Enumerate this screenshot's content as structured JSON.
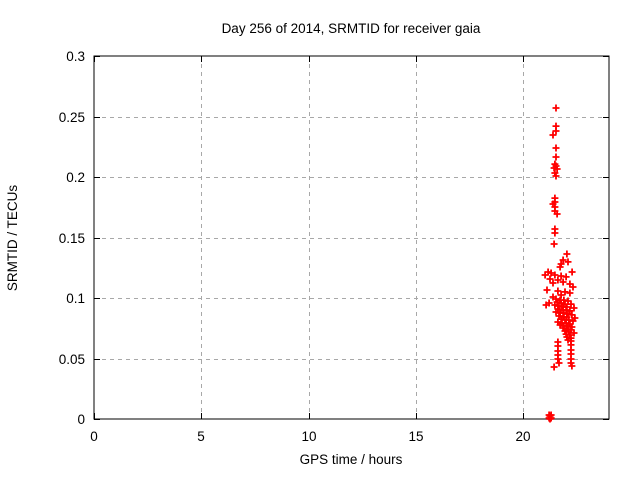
{
  "chart_data": {
    "type": "scatter",
    "title": "Day 256 of 2014, SRMTID for receiver gaia",
    "xlabel": "GPS time / hours",
    "ylabel": "SRMTID / TECUs",
    "xlim": [
      0,
      24
    ],
    "ylim": [
      0,
      0.3
    ],
    "xticks": {
      "values": [
        0,
        5,
        10,
        15,
        20
      ],
      "labels": [
        "0",
        "5",
        "10",
        "15",
        "20"
      ]
    },
    "yticks": {
      "values": [
        0,
        0.05,
        0.1,
        0.15,
        0.2,
        0.25,
        0.3
      ],
      "labels": [
        "0",
        "0.05",
        "0.1",
        "0.15",
        "0.2",
        "0.25",
        "0.3"
      ]
    },
    "grid": true,
    "grid_color": "#a8a8a8",
    "marker_shape": "plus",
    "marker_color": "#ff0000",
    "series": [
      {
        "name": "SRMTID",
        "points": [
          [
            21.53,
            0.257
          ],
          [
            21.53,
            0.2421
          ],
          [
            21.53,
            0.238
          ],
          [
            21.39,
            0.2347
          ],
          [
            21.53,
            0.224
          ],
          [
            21.53,
            0.2165
          ],
          [
            21.48,
            0.2107
          ],
          [
            21.53,
            0.2091
          ],
          [
            21.44,
            0.2074
          ],
          [
            21.58,
            0.2066
          ],
          [
            21.48,
            0.2033
          ],
          [
            21.53,
            0.2008
          ],
          [
            21.48,
            0.1826
          ],
          [
            21.48,
            0.1793
          ],
          [
            21.39,
            0.1777
          ],
          [
            21.48,
            0.1752
          ],
          [
            21.48,
            0.1719
          ],
          [
            21.58,
            0.1694
          ],
          [
            21.48,
            0.157
          ],
          [
            21.48,
            0.1537
          ],
          [
            21.44,
            0.1446
          ],
          [
            22.04,
            0.1364
          ],
          [
            21.86,
            0.1314
          ],
          [
            22.09,
            0.1298
          ],
          [
            21.77,
            0.1281
          ],
          [
            21.72,
            0.1256
          ],
          [
            21.16,
            0.1215
          ],
          [
            22.28,
            0.1215
          ],
          [
            21.3,
            0.1207
          ],
          [
            21.02,
            0.119
          ],
          [
            21.48,
            0.119
          ],
          [
            21.77,
            0.1182
          ],
          [
            22.0,
            0.1174
          ],
          [
            21.25,
            0.1157
          ],
          [
            21.62,
            0.1149
          ],
          [
            21.86,
            0.1132
          ],
          [
            21.39,
            0.1124
          ],
          [
            22.18,
            0.1116
          ],
          [
            22.32,
            0.1091
          ],
          [
            21.11,
            0.1066
          ],
          [
            21.62,
            0.1058
          ],
          [
            21.95,
            0.105
          ],
          [
            22.18,
            0.1041
          ],
          [
            21.77,
            0.1025
          ],
          [
            21.39,
            0.1008
          ],
          [
            21.21,
            0.0959
          ],
          [
            21.07,
            0.0942
          ],
          [
            21.53,
            0.0992
          ],
          [
            21.72,
            0.0983
          ],
          [
            21.9,
            0.0983
          ],
          [
            22.09,
            0.0975
          ],
          [
            21.58,
            0.0967
          ],
          [
            21.77,
            0.0959
          ],
          [
            21.95,
            0.095
          ],
          [
            22.23,
            0.095
          ],
          [
            21.48,
            0.0942
          ],
          [
            21.67,
            0.0934
          ],
          [
            21.86,
            0.0926
          ],
          [
            22.04,
            0.0926
          ],
          [
            22.37,
            0.0917
          ],
          [
            21.62,
            0.0909
          ],
          [
            21.81,
            0.0901
          ],
          [
            22.0,
            0.0901
          ],
          [
            22.18,
            0.0893
          ],
          [
            21.53,
            0.0884
          ],
          [
            21.72,
            0.0876
          ],
          [
            21.9,
            0.0876
          ],
          [
            22.09,
            0.0868
          ],
          [
            22.27,
            0.086
          ],
          [
            21.67,
            0.0851
          ],
          [
            21.86,
            0.0843
          ],
          [
            22.04,
            0.0843
          ],
          [
            22.41,
            0.0835
          ],
          [
            21.77,
            0.0826
          ],
          [
            21.95,
            0.0818
          ],
          [
            22.13,
            0.0818
          ],
          [
            22.32,
            0.081
          ],
          [
            21.62,
            0.0802
          ],
          [
            21.81,
            0.0793
          ],
          [
            22.0,
            0.0793
          ],
          [
            22.18,
            0.0785
          ],
          [
            21.72,
            0.0777
          ],
          [
            21.9,
            0.0769
          ],
          [
            22.09,
            0.0769
          ],
          [
            22.27,
            0.076
          ],
          [
            21.86,
            0.0752
          ],
          [
            22.04,
            0.0744
          ],
          [
            22.23,
            0.0736
          ],
          [
            21.95,
            0.0727
          ],
          [
            22.13,
            0.0719
          ],
          [
            22.37,
            0.0711
          ],
          [
            22.0,
            0.0702
          ],
          [
            22.18,
            0.0694
          ],
          [
            22.04,
            0.0678
          ],
          [
            22.23,
            0.0669
          ],
          [
            22.09,
            0.0653
          ],
          [
            22.23,
            0.0645
          ],
          [
            21.62,
            0.0636
          ],
          [
            21.62,
            0.0603
          ],
          [
            22.23,
            0.0612
          ],
          [
            21.62,
            0.0562
          ],
          [
            22.23,
            0.057
          ],
          [
            21.62,
            0.0529
          ],
          [
            22.23,
            0.0537
          ],
          [
            21.62,
            0.0496
          ],
          [
            22.23,
            0.0496
          ],
          [
            21.67,
            0.0463
          ],
          [
            22.23,
            0.0463
          ],
          [
            22.27,
            0.0438
          ],
          [
            21.44,
            0.043
          ],
          [
            21.21,
            0.0033
          ],
          [
            21.25,
            0.0025
          ],
          [
            21.3,
            0.0033
          ],
          [
            21.21,
            0.0008
          ],
          [
            21.25,
            0.0
          ],
          [
            21.3,
            0.0008
          ]
        ]
      }
    ]
  }
}
